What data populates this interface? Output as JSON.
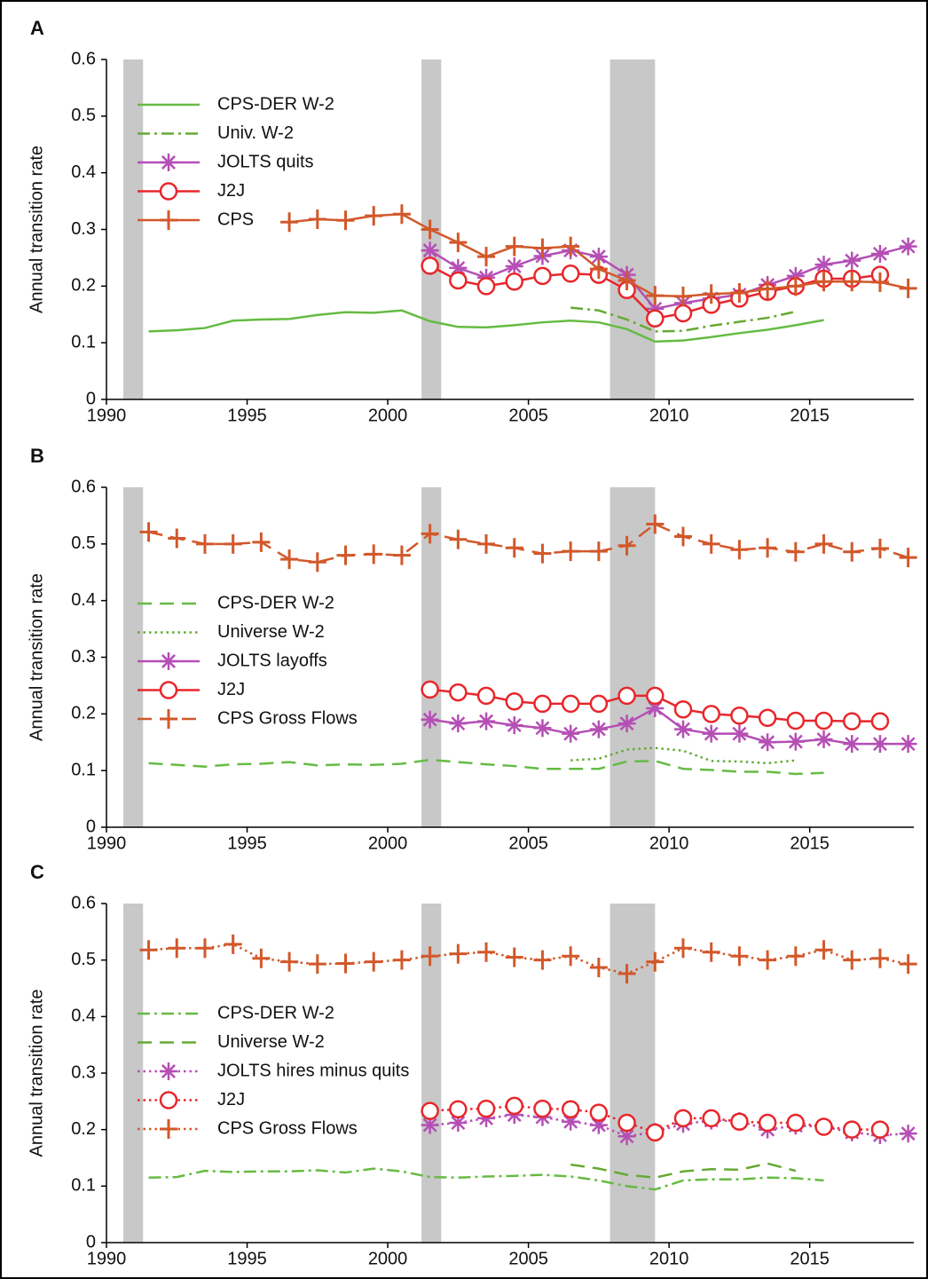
{
  "chart_data": [
    {
      "type": "line",
      "panel": "A",
      "ylabel": "Annual transition rate",
      "xlim": [
        1990,
        2018.7
      ],
      "ylim": [
        0,
        0.6
      ],
      "xticks": [
        1990,
        1995,
        2000,
        2005,
        2010,
        2015
      ],
      "yticks": [
        0,
        0.1,
        0.2,
        0.3,
        0.4,
        0.5,
        0.6
      ],
      "shaded_ranges": [
        [
          1990.6,
          1991.3
        ],
        [
          2001.2,
          2001.9
        ],
        [
          2007.9,
          2009.5
        ]
      ],
      "shade_color": "#c8c8c8",
      "series": [
        {
          "name": "CPS-DER W-2",
          "color": "#66bb44",
          "dash": "solid",
          "marker": null,
          "x": [
            1991.5,
            1992.5,
            1993.5,
            1994.5,
            1995.5,
            1996.5,
            1997.5,
            1998.5,
            1999.5,
            2000.5,
            2001.5,
            2002.5,
            2003.5,
            2004.5,
            2005.5,
            2006.5,
            2007.5,
            2008.5,
            2009.5,
            2010.5,
            2011.5,
            2012.5,
            2013.5,
            2014.5,
            2015.5
          ],
          "values": [
            0.12,
            0.122,
            0.126,
            0.139,
            0.141,
            0.142,
            0.149,
            0.154,
            0.153,
            0.157,
            0.138,
            0.128,
            0.127,
            0.131,
            0.136,
            0.139,
            0.136,
            0.124,
            0.102,
            0.104,
            0.11,
            0.117,
            0.123,
            0.131,
            0.14
          ]
        },
        {
          "name": "Univ. W-2",
          "color": "#66aa33",
          "dash": "dashdot",
          "marker": null,
          "x": [
            2006.5,
            2007.5,
            2008.5,
            2009.5,
            2010.5,
            2011.5,
            2012.5,
            2013.5,
            2014.5
          ],
          "values": [
            0.162,
            0.157,
            0.141,
            0.12,
            0.121,
            0.13,
            0.137,
            0.144,
            0.155
          ]
        },
        {
          "name": "JOLTS quits",
          "color": "#b54fb5",
          "dash": "solid",
          "marker": "star",
          "x": [
            2001.5,
            2002.5,
            2003.5,
            2004.5,
            2005.5,
            2006.5,
            2007.5,
            2008.5,
            2009.5,
            2010.5,
            2011.5,
            2012.5,
            2013.5,
            2014.5,
            2015.5,
            2016.5,
            2017.5,
            2018.5
          ],
          "values": [
            0.263,
            0.232,
            0.215,
            0.235,
            0.253,
            0.263,
            0.252,
            0.22,
            0.16,
            0.17,
            0.178,
            0.185,
            0.202,
            0.218,
            0.238,
            0.245,
            0.257,
            0.27
          ]
        },
        {
          "name": "J2J",
          "color": "#e8262b",
          "dash": "solid",
          "marker": "circle",
          "x": [
            2001.5,
            2002.5,
            2003.5,
            2004.5,
            2005.5,
            2006.5,
            2007.5,
            2008.5,
            2009.5,
            2010.5,
            2011.5,
            2012.5,
            2013.5,
            2014.5,
            2015.5,
            2016.5,
            2017.5
          ],
          "values": [
            0.236,
            0.21,
            0.2,
            0.208,
            0.218,
            0.222,
            0.22,
            0.193,
            0.143,
            0.152,
            0.167,
            0.178,
            0.19,
            0.2,
            0.213,
            0.213,
            0.22
          ]
        },
        {
          "name": "CPS",
          "color": "#d2582a",
          "dash": "solid",
          "marker": "plus",
          "x": [
            1996.5,
            1997.5,
            1998.5,
            1999.5,
            2000.5,
            2001.5,
            2002.5,
            2003.5,
            2004.5,
            2005.5,
            2006.5,
            2007.5,
            2008.5,
            2009.5,
            2010.5,
            2011.5,
            2012.5,
            2013.5,
            2014.5,
            2015.5,
            2016.5,
            2017.5,
            2018.5
          ],
          "values": [
            0.313,
            0.318,
            0.316,
            0.324,
            0.327,
            0.3,
            0.277,
            0.252,
            0.27,
            0.267,
            0.27,
            0.23,
            0.21,
            0.183,
            0.182,
            0.186,
            0.188,
            0.195,
            0.2,
            0.208,
            0.208,
            0.207,
            0.196
          ]
        }
      ]
    },
    {
      "type": "line",
      "panel": "B",
      "ylabel": "Annual transition rate",
      "xlim": [
        1990,
        2018.7
      ],
      "ylim": [
        0,
        0.6
      ],
      "xticks": [
        1990,
        1995,
        2000,
        2005,
        2010,
        2015
      ],
      "yticks": [
        0,
        0.1,
        0.2,
        0.3,
        0.4,
        0.5,
        0.6
      ],
      "shaded_ranges": [
        [
          1990.6,
          1991.3
        ],
        [
          2001.2,
          2001.9
        ],
        [
          2007.9,
          2009.5
        ]
      ],
      "shade_color": "#c8c8c8",
      "series": [
        {
          "name": "CPS-DER W-2",
          "color": "#66bb44",
          "dash": "dash",
          "marker": null,
          "x": [
            1991.5,
            1992.5,
            1993.5,
            1994.5,
            1995.5,
            1996.5,
            1997.5,
            1998.5,
            1999.5,
            2000.5,
            2001.5,
            2002.5,
            2003.5,
            2004.5,
            2005.5,
            2006.5,
            2007.5,
            2008.5,
            2009.5,
            2010.5,
            2011.5,
            2012.5,
            2013.5,
            2014.5,
            2015.5
          ],
          "values": [
            0.113,
            0.11,
            0.107,
            0.111,
            0.112,
            0.115,
            0.109,
            0.111,
            0.11,
            0.112,
            0.119,
            0.115,
            0.111,
            0.108,
            0.103,
            0.103,
            0.103,
            0.116,
            0.117,
            0.103,
            0.101,
            0.098,
            0.098,
            0.094,
            0.096
          ]
        },
        {
          "name": "Universe W-2",
          "color": "#66aa33",
          "dash": "dot",
          "marker": null,
          "x": [
            2006.5,
            2007.5,
            2008.5,
            2009.5,
            2010.5,
            2011.5,
            2012.5,
            2013.5,
            2014.5
          ],
          "values": [
            0.118,
            0.121,
            0.137,
            0.14,
            0.135,
            0.117,
            0.116,
            0.113,
            0.118
          ]
        },
        {
          "name": "JOLTS layoffs",
          "color": "#b54fb5",
          "dash": "solid",
          "marker": "star",
          "x": [
            2001.5,
            2002.5,
            2003.5,
            2004.5,
            2005.5,
            2006.5,
            2007.5,
            2008.5,
            2009.5,
            2010.5,
            2011.5,
            2012.5,
            2013.5,
            2014.5,
            2015.5,
            2016.5,
            2017.5,
            2018.5
          ],
          "values": [
            0.19,
            0.183,
            0.187,
            0.18,
            0.175,
            0.165,
            0.173,
            0.183,
            0.21,
            0.173,
            0.165,
            0.165,
            0.15,
            0.151,
            0.155,
            0.147,
            0.147,
            0.147
          ]
        },
        {
          "name": "J2J",
          "color": "#e8262b",
          "dash": "solid",
          "marker": "circle",
          "x": [
            2001.5,
            2002.5,
            2003.5,
            2004.5,
            2005.5,
            2006.5,
            2007.5,
            2008.5,
            2009.5,
            2010.5,
            2011.5,
            2012.5,
            2013.5,
            2014.5,
            2015.5,
            2016.5,
            2017.5
          ],
          "values": [
            0.243,
            0.238,
            0.232,
            0.222,
            0.218,
            0.218,
            0.218,
            0.232,
            0.232,
            0.208,
            0.2,
            0.197,
            0.193,
            0.188,
            0.188,
            0.187,
            0.187
          ]
        },
        {
          "name": "CPS Gross Flows",
          "color": "#d2582a",
          "dash": "dash",
          "marker": "plus",
          "x": [
            1991.5,
            1992.5,
            1993.5,
            1994.5,
            1995.5,
            1996.5,
            1997.5,
            1998.5,
            1999.5,
            2000.5,
            2001.5,
            2002.5,
            2003.5,
            2004.5,
            2005.5,
            2006.5,
            2007.5,
            2008.5,
            2009.5,
            2010.5,
            2011.5,
            2012.5,
            2013.5,
            2014.5,
            2015.5,
            2016.5,
            2017.5,
            2018.5
          ],
          "values": [
            0.521,
            0.51,
            0.5,
            0.5,
            0.503,
            0.473,
            0.468,
            0.48,
            0.482,
            0.48,
            0.518,
            0.508,
            0.5,
            0.493,
            0.483,
            0.487,
            0.487,
            0.497,
            0.535,
            0.513,
            0.5,
            0.49,
            0.493,
            0.486,
            0.5,
            0.486,
            0.492,
            0.476
          ]
        }
      ]
    },
    {
      "type": "line",
      "panel": "C",
      "ylabel": "Annual transition rate",
      "xlim": [
        1990,
        2018.7
      ],
      "ylim": [
        0,
        0.6
      ],
      "xticks": [
        1990,
        1995,
        2000,
        2005,
        2010,
        2015
      ],
      "yticks": [
        0,
        0.1,
        0.2,
        0.3,
        0.4,
        0.5,
        0.6
      ],
      "shaded_ranges": [
        [
          1990.6,
          1991.3
        ],
        [
          2001.2,
          2001.9
        ],
        [
          2007.9,
          2009.5
        ]
      ],
      "shade_color": "#c8c8c8",
      "series": [
        {
          "name": "CPS-DER W-2",
          "color": "#66bb44",
          "dash": "dashdot",
          "marker": null,
          "x": [
            1991.5,
            1992.5,
            1993.5,
            1994.5,
            1995.5,
            1996.5,
            1997.5,
            1998.5,
            1999.5,
            2000.5,
            2001.5,
            2002.5,
            2003.5,
            2004.5,
            2005.5,
            2006.5,
            2007.5,
            2008.5,
            2009.5,
            2010.5,
            2011.5,
            2012.5,
            2013.5,
            2014.5,
            2015.5
          ],
          "values": [
            0.115,
            0.116,
            0.127,
            0.125,
            0.126,
            0.126,
            0.128,
            0.124,
            0.131,
            0.126,
            0.116,
            0.115,
            0.117,
            0.118,
            0.12,
            0.117,
            0.11,
            0.1,
            0.094,
            0.11,
            0.112,
            0.112,
            0.115,
            0.114,
            0.11
          ]
        },
        {
          "name": "Universe W-2",
          "color": "#66aa33",
          "dash": "dash",
          "marker": null,
          "x": [
            2006.5,
            2007.5,
            2008.5,
            2009.5,
            2010.5,
            2011.5,
            2012.5,
            2013.5,
            2014.5
          ],
          "values": [
            0.138,
            0.131,
            0.12,
            0.115,
            0.126,
            0.13,
            0.129,
            0.14,
            0.127
          ]
        },
        {
          "name": "JOLTS hires minus quits",
          "color": "#b54fb5",
          "dash": "dot",
          "marker": "star",
          "x": [
            2001.5,
            2002.5,
            2003.5,
            2004.5,
            2005.5,
            2006.5,
            2007.5,
            2008.5,
            2009.5,
            2010.5,
            2011.5,
            2012.5,
            2013.5,
            2014.5,
            2015.5,
            2016.5,
            2017.5,
            2018.5
          ],
          "values": [
            0.208,
            0.212,
            0.22,
            0.226,
            0.222,
            0.214,
            0.208,
            0.188,
            0.196,
            0.21,
            0.216,
            0.215,
            0.2,
            0.207,
            0.205,
            0.195,
            0.19,
            0.193
          ]
        },
        {
          "name": "J2J",
          "color": "#e8262b",
          "dash": "dot",
          "marker": "circle",
          "x": [
            2001.5,
            2002.5,
            2003.5,
            2004.5,
            2005.5,
            2006.5,
            2007.5,
            2008.5,
            2009.5,
            2010.5,
            2011.5,
            2012.5,
            2013.5,
            2014.5,
            2015.5,
            2016.5,
            2017.5
          ],
          "values": [
            0.233,
            0.236,
            0.237,
            0.242,
            0.237,
            0.236,
            0.23,
            0.212,
            0.195,
            0.22,
            0.22,
            0.214,
            0.212,
            0.212,
            0.205,
            0.2,
            0.2
          ]
        },
        {
          "name": "CPS Gross Flows",
          "color": "#d2582a",
          "dash": "dot",
          "marker": "plus",
          "x": [
            1991.5,
            1992.5,
            1993.5,
            1994.5,
            1995.5,
            1996.5,
            1997.5,
            1998.5,
            1999.5,
            2000.5,
            2001.5,
            2002.5,
            2003.5,
            2004.5,
            2005.5,
            2006.5,
            2007.5,
            2008.5,
            2009.5,
            2010.5,
            2011.5,
            2012.5,
            2013.5,
            2014.5,
            2015.5,
            2016.5,
            2017.5,
            2018.5
          ],
          "values": [
            0.518,
            0.521,
            0.521,
            0.528,
            0.503,
            0.497,
            0.493,
            0.494,
            0.497,
            0.5,
            0.507,
            0.511,
            0.514,
            0.505,
            0.5,
            0.507,
            0.487,
            0.476,
            0.497,
            0.521,
            0.514,
            0.507,
            0.5,
            0.507,
            0.518,
            0.5,
            0.503,
            0.493
          ]
        }
      ]
    }
  ]
}
